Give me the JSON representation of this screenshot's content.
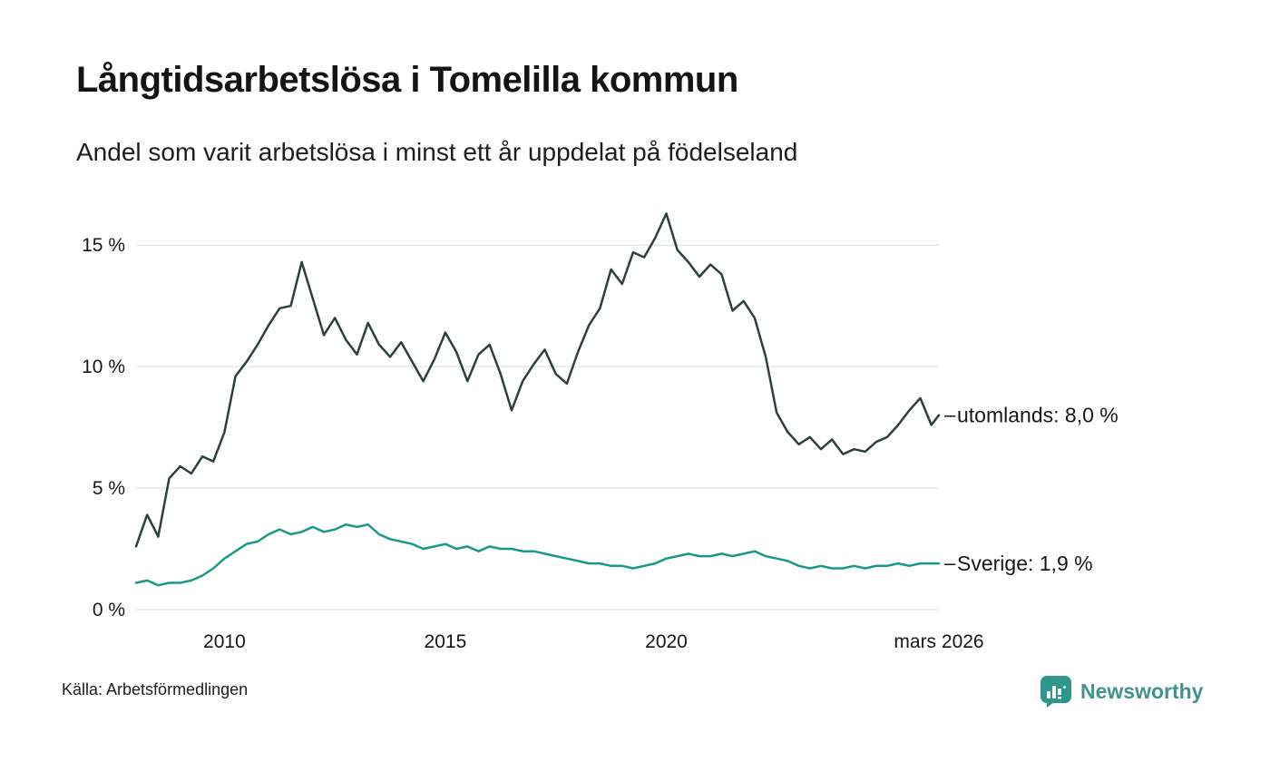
{
  "header": {
    "title": "Långtidsarbetslösa i Tomelilla kommun",
    "subtitle": "Andel som varit arbetslösa i minst ett år uppdelat på födelseland"
  },
  "footer": {
    "source": "Källa: Arbetsförmedlingen"
  },
  "brand": {
    "name": "Newsworthy",
    "color": "#41938b"
  },
  "chart_data": {
    "type": "line",
    "title": "Långtidsarbetslösa i Tomelilla kommun",
    "subtitle": "Andel som varit arbetslösa i minst ett år uppdelat på födelseland",
    "xlabel": "",
    "ylabel": "",
    "xlim": [
      2008,
      2026.17
    ],
    "ylim": [
      0,
      16.5
    ],
    "grid": "horizontal",
    "grid_color": "#dcdcdc",
    "label_tick_char": "–",
    "label_tick_color": "#999999",
    "y_ticks": [
      {
        "value": 0,
        "label": "0 %"
      },
      {
        "value": 5,
        "label": "5 %"
      },
      {
        "value": 10,
        "label": "10 %"
      },
      {
        "value": 15,
        "label": "15 %"
      }
    ],
    "x_ticks": [
      {
        "value": 2010,
        "label": "2010"
      },
      {
        "value": 2015,
        "label": "2015"
      },
      {
        "value": 2020,
        "label": "2020"
      },
      {
        "value": 2026.17,
        "label": "mars 2026"
      }
    ],
    "x": [
      2008,
      2008.25,
      2008.5,
      2008.75,
      2009,
      2009.25,
      2009.5,
      2009.75,
      2010,
      2010.25,
      2010.5,
      2010.75,
      2011,
      2011.25,
      2011.5,
      2011.75,
      2012,
      2012.25,
      2012.5,
      2012.75,
      2013,
      2013.25,
      2013.5,
      2013.75,
      2014,
      2014.25,
      2014.5,
      2014.75,
      2015,
      2015.25,
      2015.5,
      2015.75,
      2016,
      2016.25,
      2016.5,
      2016.75,
      2017,
      2017.25,
      2017.5,
      2017.75,
      2018,
      2018.25,
      2018.5,
      2018.75,
      2019,
      2019.25,
      2019.5,
      2019.75,
      2020,
      2020.25,
      2020.5,
      2020.75,
      2021,
      2021.25,
      2021.5,
      2021.75,
      2022,
      2022.25,
      2022.5,
      2022.75,
      2023,
      2023.25,
      2023.5,
      2023.75,
      2024,
      2024.25,
      2024.5,
      2024.75,
      2025,
      2025.25,
      2025.5,
      2025.75,
      2026,
      2026.17
    ],
    "series": [
      {
        "name": "utomlands",
        "end_label": "utomlands: 8,0 %",
        "last_value_label": "8,0 %",
        "color": "#2c403d",
        "values": [
          2.6,
          3.9,
          3.0,
          5.4,
          5.9,
          5.6,
          6.3,
          6.1,
          7.3,
          9.6,
          10.2,
          10.9,
          11.7,
          12.4,
          12.5,
          14.3,
          12.8,
          11.3,
          12.0,
          11.1,
          10.5,
          11.8,
          10.9,
          10.4,
          11.0,
          10.2,
          9.4,
          10.3,
          11.4,
          10.6,
          9.4,
          10.5,
          10.9,
          9.7,
          8.2,
          9.4,
          10.1,
          10.7,
          9.7,
          9.3,
          10.6,
          11.7,
          12.4,
          14.0,
          13.4,
          14.7,
          14.5,
          15.3,
          16.3,
          14.8,
          14.3,
          13.7,
          14.2,
          13.8,
          12.3,
          12.7,
          12.0,
          10.4,
          8.1,
          7.3,
          6.8,
          7.1,
          6.6,
          7.0,
          6.4,
          6.6,
          6.5,
          6.9,
          7.1,
          7.6,
          8.2,
          8.7,
          7.6,
          8.0
        ]
      },
      {
        "name": "Sverige",
        "end_label": "Sverige: 1,9 %",
        "last_value_label": "1,9 %",
        "color": "#17998a",
        "values": [
          1.1,
          1.2,
          1.0,
          1.1,
          1.1,
          1.2,
          1.4,
          1.7,
          2.1,
          2.4,
          2.7,
          2.8,
          3.1,
          3.3,
          3.1,
          3.2,
          3.4,
          3.2,
          3.3,
          3.5,
          3.4,
          3.5,
          3.1,
          2.9,
          2.8,
          2.7,
          2.5,
          2.6,
          2.7,
          2.5,
          2.6,
          2.4,
          2.6,
          2.5,
          2.5,
          2.4,
          2.4,
          2.3,
          2.2,
          2.1,
          2.0,
          1.9,
          1.9,
          1.8,
          1.8,
          1.7,
          1.8,
          1.9,
          2.1,
          2.2,
          2.3,
          2.2,
          2.2,
          2.3,
          2.2,
          2.3,
          2.4,
          2.2,
          2.1,
          2.0,
          1.8,
          1.7,
          1.8,
          1.7,
          1.7,
          1.8,
          1.7,
          1.8,
          1.8,
          1.9,
          1.8,
          1.9,
          1.9,
          1.9
        ]
      }
    ],
    "legend_position": "end-of-line labels"
  }
}
